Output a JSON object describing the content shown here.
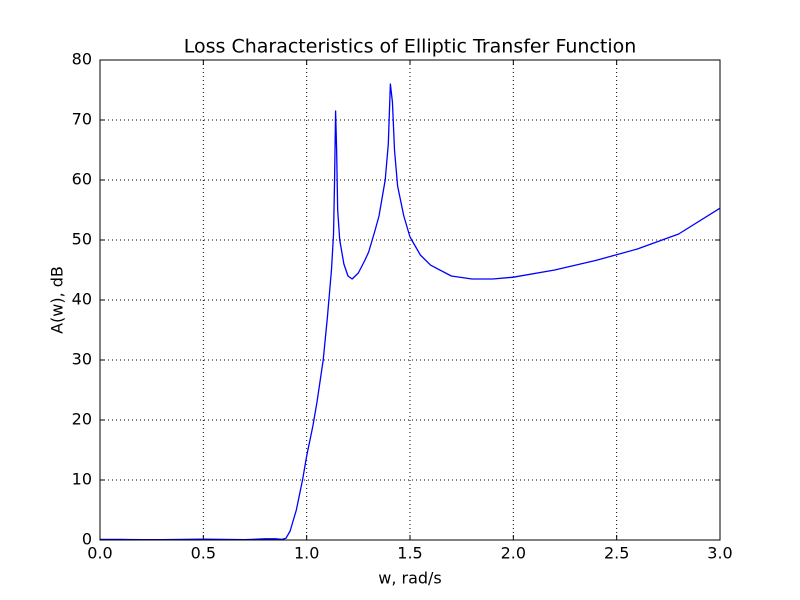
{
  "chart_data": {
    "type": "line",
    "title": "Loss Characteristics of Elliptic Transfer Function",
    "x_label": "w, rad/s",
    "y_label": "A(w), dB",
    "x": [
      0,
      0.1,
      0.2,
      0.3,
      0.4,
      0.5,
      0.6,
      0.7,
      0.8,
      0.85,
      0.88,
      0.9,
      0.92,
      0.95,
      0.98,
      1.0,
      1.03,
      1.05,
      1.08,
      1.1,
      1.12,
      1.13,
      1.135,
      1.14,
      1.145,
      1.15,
      1.16,
      1.18,
      1.2,
      1.22,
      1.25,
      1.28,
      1.3,
      1.33,
      1.35,
      1.38,
      1.395,
      1.405,
      1.415,
      1.425,
      1.44,
      1.47,
      1.5,
      1.55,
      1.6,
      1.7,
      1.8,
      1.9,
      2.0,
      2.2,
      2.4,
      2.6,
      2.8,
      3.0
    ],
    "values": [
      0.1,
      0.1,
      0.05,
      0.05,
      0.1,
      0.15,
      0.1,
      0.05,
      0.2,
      0.2,
      0.1,
      0.3,
      1.5,
      5,
      10,
      14,
      19,
      23,
      30,
      37,
      45,
      51,
      60,
      71.5,
      65,
      55,
      50,
      46,
      44,
      43.5,
      44.5,
      46.5,
      48,
      51.5,
      54,
      60,
      66,
      76,
      73,
      65,
      59,
      54,
      50.5,
      47.5,
      45.8,
      44,
      43.5,
      43.5,
      43.8,
      45,
      46.6,
      48.5,
      51,
      55.3
    ],
    "color": "#0000ff",
    "xlim": [
      0,
      3
    ],
    "xticks": [
      {
        "value": 0,
        "label": "0.0"
      },
      {
        "value": 0.5,
        "label": "0.5"
      },
      {
        "value": 1,
        "label": "1.0"
      },
      {
        "value": 1.5,
        "label": "1.5"
      },
      {
        "value": 2,
        "label": "2.0"
      },
      {
        "value": 2.5,
        "label": "2.5"
      },
      {
        "value": 3,
        "label": "3.0"
      }
    ],
    "ylim": [
      0,
      80
    ],
    "yticks": [
      0,
      10,
      20,
      30,
      40,
      50,
      60,
      70,
      80
    ],
    "grid": true
  }
}
